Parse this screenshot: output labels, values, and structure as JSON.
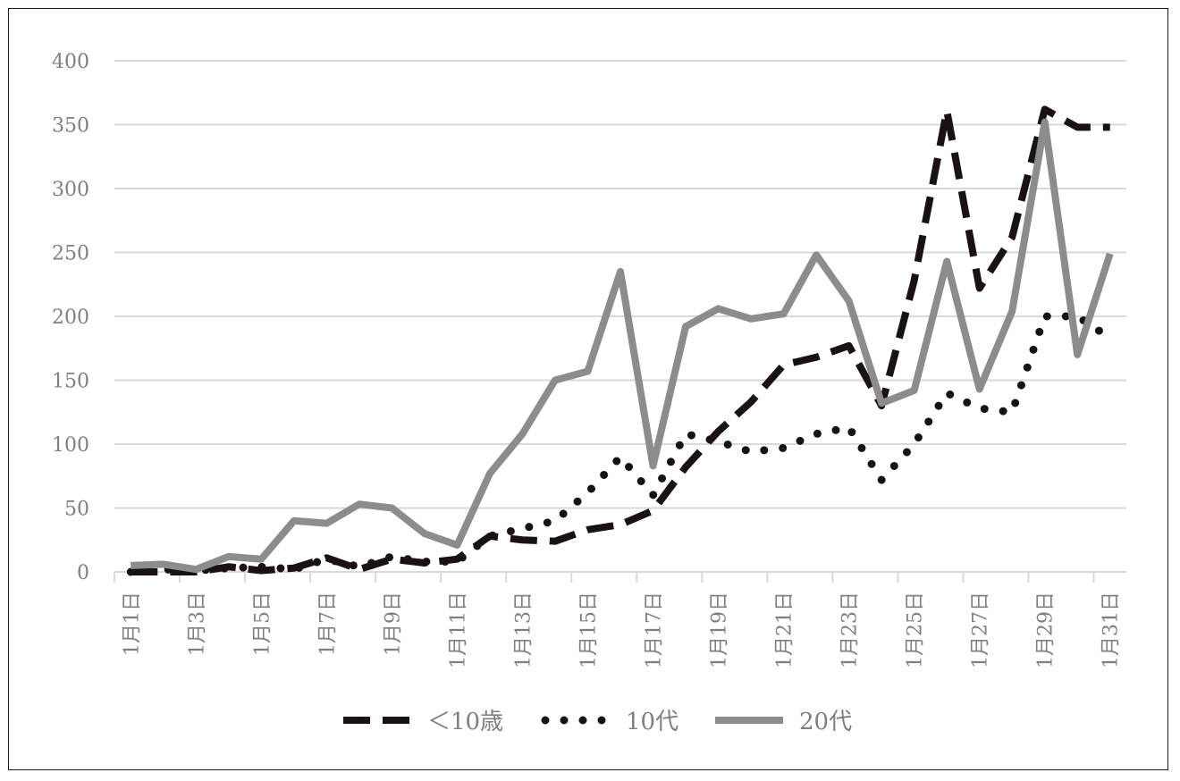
{
  "chart_data": {
    "type": "line",
    "ylim": [
      0,
      400
    ],
    "yticks": [
      "0",
      "50",
      "100",
      "150",
      "200",
      "250",
      "300",
      "350",
      "400"
    ],
    "x": [
      "1月1日",
      "1月2日",
      "1月3日",
      "1月4日",
      "1月5日",
      "1月6日",
      "1月7日",
      "1月8日",
      "1月9日",
      "1月10日",
      "1月11日",
      "1月12日",
      "1月13日",
      "1月14日",
      "1月15日",
      "1月16日",
      "1月17日",
      "1月18日",
      "1月19日",
      "1月20日",
      "1月21日",
      "1月22日",
      "1月23日",
      "1月24日",
      "1月25日",
      "1月26日",
      "1月27日",
      "1月28日",
      "1月29日",
      "1月30日",
      "1月31日"
    ],
    "xticks_shown": [
      "1月1日",
      "1月3日",
      "1月5日",
      "1月7日",
      "1月9日",
      "1月11日",
      "1月13日",
      "1月15日",
      "1月17日",
      "1月19日",
      "1月21日",
      "1月23日",
      "1月25日",
      "1月27日",
      "1月29日",
      "1月31日"
    ],
    "series": [
      {
        "name": "＜10歳",
        "style": "dashed",
        "color": "#1a1212",
        "values": [
          0,
          0,
          0,
          4,
          1,
          3,
          11,
          2,
          10,
          7,
          10,
          28,
          25,
          24,
          33,
          37,
          48,
          82,
          110,
          133,
          162,
          168,
          177,
          130,
          228,
          361,
          222,
          262,
          362,
          348,
          348
        ]
      },
      {
        "name": "10代",
        "style": "dotted",
        "color": "#1a1212",
        "values": [
          0,
          2,
          1,
          3,
          4,
          2,
          10,
          4,
          12,
          8,
          8,
          28,
          34,
          40,
          62,
          90,
          60,
          108,
          102,
          94,
          97,
          108,
          113,
          72,
          100,
          140,
          128,
          125,
          200,
          200,
          183
        ]
      },
      {
        "name": "20代",
        "style": "solid",
        "color": "#8c8c8c",
        "values": [
          5,
          6,
          2,
          12,
          10,
          40,
          38,
          53,
          50,
          30,
          21,
          77,
          108,
          150,
          157,
          235,
          83,
          192,
          206,
          198,
          202,
          248,
          212,
          132,
          142,
          243,
          143,
          204,
          352,
          170,
          249
        ]
      }
    ],
    "legend_position": "bottom",
    "grid": true
  }
}
